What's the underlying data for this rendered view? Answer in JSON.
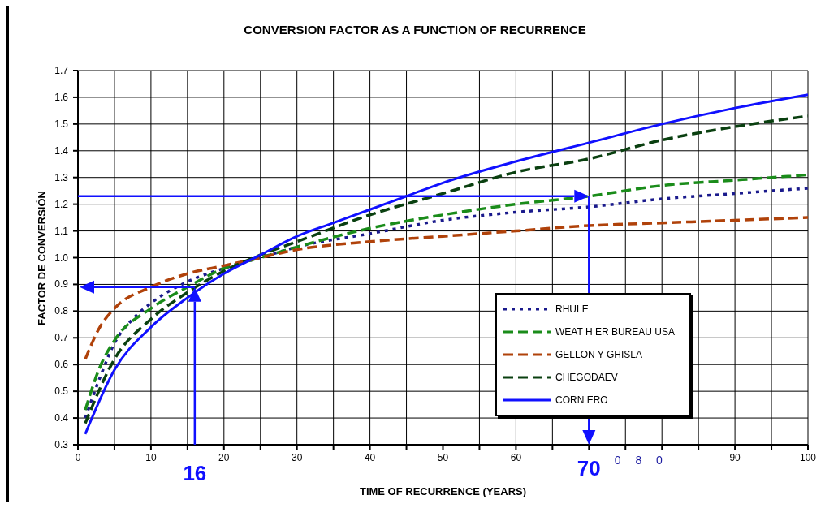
{
  "chart_data": {
    "type": "line",
    "title": "CONVERSION FACTOR AS A FUNCTION OF RECURRENCE",
    "xlabel": "TIME OF RECURRENCE (YEARS)",
    "ylabel": "FACTOR DE CONVERSIÓN",
    "xlim": [
      0,
      100
    ],
    "ylim": [
      0.3,
      1.7
    ],
    "xticks": [
      0,
      {
        "value": 5,
        "label": null
      },
      10,
      {
        "value": 15,
        "label": null
      },
      20,
      {
        "value": 25,
        "label": null
      },
      30,
      {
        "value": 35,
        "label": null
      },
      40,
      {
        "value": 45,
        "label": null
      },
      50,
      {
        "value": 55,
        "label": null
      },
      60,
      {
        "value": 65,
        "label": null
      },
      {
        "value": 70,
        "label": null
      },
      {
        "value": 75,
        "label": null
      },
      {
        "value": 80,
        "label": null
      },
      {
        "value": 85,
        "label": null
      },
      90,
      {
        "value": 95,
        "label": null
      },
      100
    ],
    "yticks": [
      0.3,
      0.4,
      0.5,
      0.6,
      0.7,
      0.8,
      0.9,
      {
        "value": 1.0,
        "label": "1.0"
      },
      1.1,
      1.2,
      1.3,
      1.4,
      1.5,
      1.6,
      1.7
    ],
    "grid": true,
    "legend": "bottom right",
    "marker": "none",
    "series": [
      {
        "name": "RHULE",
        "color": "#1a1a8c",
        "line_style": "dotted",
        "x": [
          1,
          3,
          5,
          7.5,
          10,
          15,
          20,
          25,
          30,
          40,
          50,
          60,
          70,
          80,
          90,
          100
        ],
        "values": [
          0.4,
          0.55,
          0.68,
          0.77,
          0.83,
          0.91,
          0.96,
          1.0,
          1.04,
          1.09,
          1.14,
          1.17,
          1.19,
          1.22,
          1.24,
          1.26
        ]
      },
      {
        "name": "WEAT H ER BUREAU USA",
        "color": "#1a8c1a",
        "line_style": "dashed",
        "x": [
          1,
          3,
          5,
          10,
          15,
          20,
          25,
          30,
          40,
          50,
          60,
          70,
          80,
          90,
          100
        ],
        "values": [
          0.43,
          0.59,
          0.69,
          0.81,
          0.89,
          0.96,
          1.0,
          1.04,
          1.11,
          1.16,
          1.2,
          1.23,
          1.27,
          1.29,
          1.31
        ]
      },
      {
        "name": "GELLON Y GHISLA",
        "color": "#b0420a",
        "line_style": "dashed",
        "x": [
          1,
          3,
          5,
          10,
          15,
          20,
          25,
          30,
          40,
          50,
          60,
          70,
          80,
          90,
          100
        ],
        "values": [
          0.62,
          0.74,
          0.81,
          0.89,
          0.94,
          0.97,
          1.0,
          1.03,
          1.06,
          1.08,
          1.1,
          1.12,
          1.13,
          1.14,
          1.15
        ]
      },
      {
        "name": "CHEGODAEV",
        "color": "#0a4010",
        "line_style": "dashed",
        "x": [
          1,
          5,
          10,
          15,
          20,
          25,
          30,
          40,
          50,
          60,
          70,
          80,
          90,
          100
        ],
        "values": [
          0.38,
          0.62,
          0.77,
          0.87,
          0.95,
          1.01,
          1.06,
          1.16,
          1.24,
          1.32,
          1.37,
          1.44,
          1.49,
          1.53
        ]
      },
      {
        "name": "CORN ERO",
        "color": "#1010ff",
        "line_style": "solid",
        "x": [
          1,
          5,
          10,
          15,
          20,
          25,
          30,
          35,
          40,
          45,
          50,
          60,
          70,
          80,
          90,
          100
        ],
        "values": [
          0.34,
          0.58,
          0.74,
          0.85,
          0.94,
          1.01,
          1.08,
          1.13,
          1.18,
          1.23,
          1.28,
          1.36,
          1.43,
          1.5,
          1.56,
          1.61
        ]
      }
    ],
    "ref_lines": [
      {
        "axis": "x",
        "value": 16,
        "label": "16",
        "color": "#1010ff"
      },
      {
        "axis": "y",
        "value": 0.89,
        "color": "#1010ff"
      },
      {
        "axis": "x",
        "value": 70,
        "label": "70",
        "color": "#1010ff"
      },
      {
        "axis": "y",
        "value": 1.23,
        "color": "#1010ff"
      }
    ],
    "annotations": [
      "0 8 0"
    ]
  }
}
